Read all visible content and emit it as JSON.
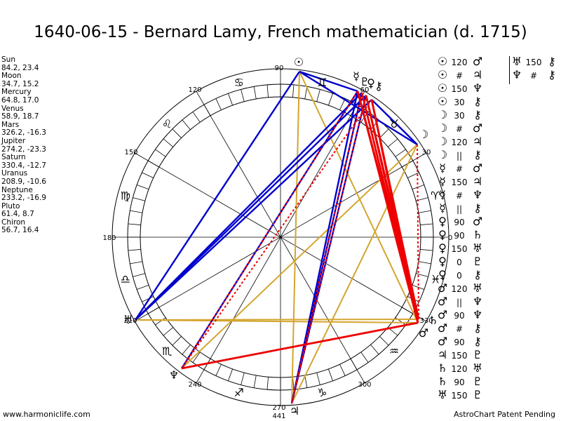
{
  "title": "1640-06-15 - Bernard Lamy, French mathematician (d. 1715)",
  "planets": [
    {
      "name": "Sun",
      "coords": "84.2, 23.4"
    },
    {
      "name": "Moon",
      "coords": "34.7, 15.2"
    },
    {
      "name": "Mercury",
      "coords": "64.8, 17.0"
    },
    {
      "name": "Venus",
      "coords": "58.9, 18.7"
    },
    {
      "name": "Mars",
      "coords": "326.2, -16.3"
    },
    {
      "name": "Jupiter",
      "coords": "274.2, -23.3"
    },
    {
      "name": "Saturn",
      "coords": "330.4, -12.7"
    },
    {
      "name": "Uranus",
      "coords": "208.9, -10.6"
    },
    {
      "name": "Neptune",
      "coords": "233.2, -16.9"
    },
    {
      "name": "Pluto",
      "coords": "61.4, 8.7"
    },
    {
      "name": "Chiron",
      "coords": "56.7, 16.4"
    }
  ],
  "aspects_col1": [
    {
      "a": "☉",
      "asp": "120",
      "b": "♂"
    },
    {
      "a": "☉",
      "asp": "#",
      "b": "♃"
    },
    {
      "a": "☉",
      "asp": "150",
      "b": "♆"
    },
    {
      "a": "☉",
      "asp": "30",
      "b": "⚷"
    },
    {
      "a": "☽",
      "asp": "30",
      "b": "⚷"
    },
    {
      "a": "☽",
      "asp": "#",
      "b": "♂"
    },
    {
      "a": "☽",
      "asp": "120",
      "b": "♃"
    },
    {
      "a": "☽",
      "asp": "||",
      "b": "⚷"
    },
    {
      "a": "☿",
      "asp": "#",
      "b": "♂"
    },
    {
      "a": "☿",
      "asp": "150",
      "b": "♃"
    },
    {
      "a": "☿",
      "asp": "#",
      "b": "♆"
    },
    {
      "a": "☿",
      "asp": "||",
      "b": "⚷"
    },
    {
      "a": "♀",
      "asp": "90",
      "b": "♂"
    },
    {
      "a": "♀",
      "asp": "90",
      "b": "♄"
    },
    {
      "a": "♀",
      "asp": "150",
      "b": "♅"
    },
    {
      "a": "♀",
      "asp": "0",
      "b": "♇"
    },
    {
      "a": "♀",
      "asp": "0",
      "b": "⚷"
    },
    {
      "a": "♂",
      "asp": "120",
      "b": "♅"
    },
    {
      "a": "♂",
      "asp": "||",
      "b": "♆"
    },
    {
      "a": "♂",
      "asp": "90",
      "b": "♆"
    },
    {
      "a": "♂",
      "asp": "#",
      "b": "⚷"
    },
    {
      "a": "♂",
      "asp": "90",
      "b": "⚷"
    },
    {
      "a": "♃",
      "asp": "150",
      "b": "♇"
    },
    {
      "a": "♄",
      "asp": "120",
      "b": "♅"
    },
    {
      "a": "♄",
      "asp": "90",
      "b": "♇"
    },
    {
      "a": "♅",
      "asp": "150",
      "b": "♇"
    }
  ],
  "aspects_col2": [
    {
      "a": "♅",
      "asp": "150",
      "b": "⚷"
    },
    {
      "a": "♆",
      "asp": "#",
      "b": "⚷"
    }
  ],
  "wheel": {
    "degree_labels": [
      "90",
      "120",
      "150",
      "180",
      "210",
      "240",
      "270",
      "300",
      "330",
      "0",
      "30",
      "60"
    ],
    "zodiac": [
      "♈",
      "♉",
      "♊",
      "♋",
      "♌",
      "♍",
      "♎",
      "♏",
      "♐",
      "♑",
      "♒",
      "♓"
    ],
    "bottom_value": "441",
    "colors": {
      "blue": "#0000cc",
      "red": "#ee0000",
      "gold": "#d4a530"
    }
  },
  "footer": {
    "left": "www.harmoniclife.com",
    "right": "AstroChart Patent Pending"
  }
}
